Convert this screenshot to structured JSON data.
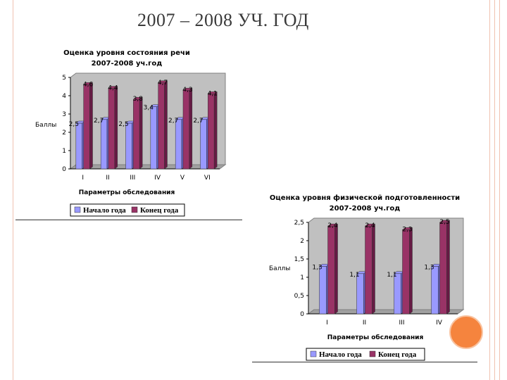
{
  "slide": {
    "title": "2007 – 2008 УЧ. ГОД"
  },
  "colors": {
    "series_start": "#9999ff",
    "series_end": "#993366",
    "plot_bg": "#c0c0c0",
    "accent_circle": "#f5843e"
  },
  "chart_data": [
    {
      "type": "bar",
      "title": "Оценка уровня состояния речи",
      "subtitle": "2007-2008 уч.год",
      "xlabel": "Параметры обследования",
      "ylabel": "Баллы",
      "categories": [
        "I",
        "II",
        "III",
        "IV",
        "V",
        "VI"
      ],
      "series": [
        {
          "name": "Начало года",
          "values": [
            2.5,
            2.7,
            2.5,
            3.4,
            2.7,
            2.7
          ],
          "labels": [
            "2,5",
            "2,7",
            "2,5",
            "3,4",
            "2,7",
            "2,7"
          ]
        },
        {
          "name": "Конец года",
          "values": [
            4.6,
            4.4,
            3.8,
            4.7,
            4.3,
            4.1
          ],
          "labels": [
            "4,6",
            "4,4",
            "3,8",
            "4,7",
            "4,3",
            "4,1"
          ]
        }
      ],
      "ylim": [
        0,
        5
      ],
      "yticks": [
        "0",
        "1",
        "2",
        "3",
        "4",
        "5"
      ],
      "grid": false,
      "legend": "bottom"
    },
    {
      "type": "bar",
      "title": "Оценка уровня физической подготовленности",
      "subtitle": "2007-2008 уч.год",
      "xlabel": "Параметры обследования",
      "ylabel": "Баллы",
      "categories": [
        "I",
        "II",
        "III",
        "IV"
      ],
      "series": [
        {
          "name": "Начало года",
          "values": [
            1.3,
            1.1,
            1.1,
            1.3
          ],
          "labels": [
            "1,3",
            "1,1",
            "1,1",
            "1,3"
          ]
        },
        {
          "name": "Конец года",
          "values": [
            2.4,
            2.4,
            2.3,
            2.5
          ],
          "labels": [
            "2,4",
            "2,4",
            "2,3",
            "2,5"
          ]
        }
      ],
      "ylim": [
        0,
        2.5
      ],
      "yticks": [
        "0",
        "0,5",
        "1",
        "1,5",
        "2",
        "2,5"
      ],
      "grid": false,
      "legend": "bottom"
    }
  ]
}
